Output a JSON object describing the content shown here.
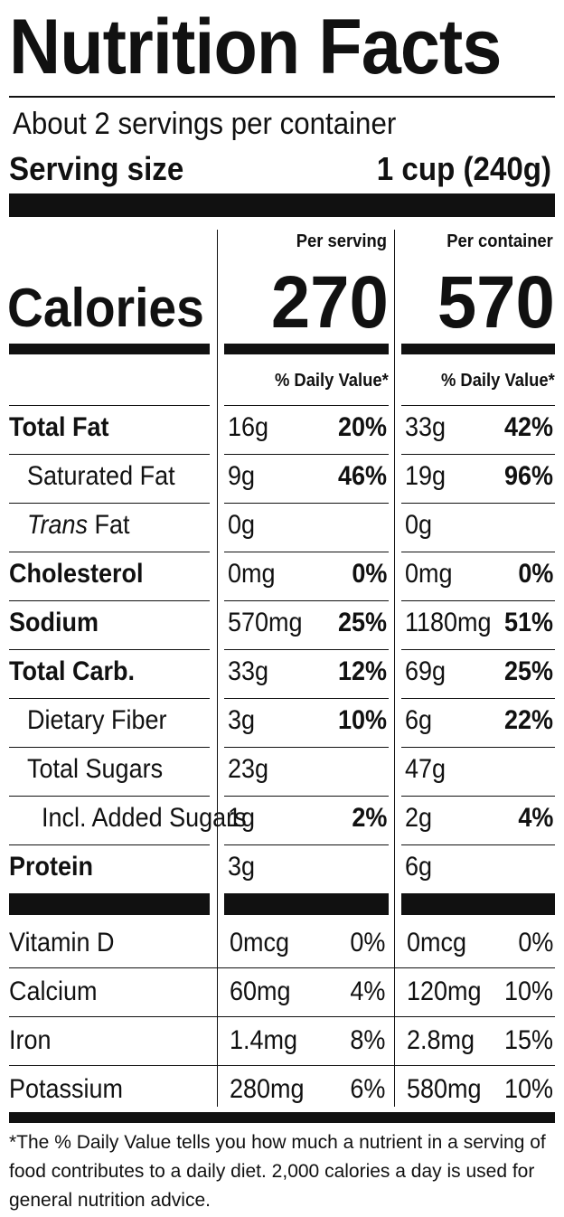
{
  "title": "Nutrition Facts",
  "servings_per_container": "About 2 servings per container",
  "serving_size": {
    "label": "Serving size",
    "value": "1 cup (240g)"
  },
  "columns": {
    "per_serving": "Per serving",
    "per_container": "Per container"
  },
  "calories": {
    "label": "Calories",
    "per_serving": "270",
    "per_container": "570"
  },
  "daily_value_header": "% Daily Value*",
  "nutrients": [
    {
      "label": "Total Fat",
      "serving_amount": "16g",
      "serving_dv": "20%",
      "container_amount": "33g",
      "container_dv": "42%"
    },
    {
      "label": "Saturated Fat",
      "serving_amount": "9g",
      "serving_dv": "46%",
      "container_amount": "19g",
      "container_dv": "96%"
    },
    {
      "label_italic": "Trans",
      "label": " Fat",
      "serving_amount": "0g",
      "serving_dv": "",
      "container_amount": "0g",
      "container_dv": ""
    },
    {
      "label": "Cholesterol",
      "serving_amount": "0mg",
      "serving_dv": "0%",
      "container_amount": "0mg",
      "container_dv": "0%"
    },
    {
      "label": "Sodium",
      "serving_amount": "570mg",
      "serving_dv": "25%",
      "container_amount": "1180mg",
      "container_dv": "51%"
    },
    {
      "label": "Total Carb.",
      "serving_amount": "33g",
      "serving_dv": "12%",
      "container_amount": "69g",
      "container_dv": "25%"
    },
    {
      "label": "Dietary Fiber",
      "serving_amount": "3g",
      "serving_dv": "10%",
      "container_amount": "6g",
      "container_dv": "22%"
    },
    {
      "label": "Total Sugars",
      "serving_amount": "23g",
      "serving_dv": "",
      "container_amount": "47g",
      "container_dv": ""
    },
    {
      "label": "Incl. Added Sugars",
      "serving_amount": "1g",
      "serving_dv": "2%",
      "container_amount": "2g",
      "container_dv": "4%"
    },
    {
      "label": "Protein",
      "serving_amount": "3g",
      "serving_dv": "",
      "container_amount": "6g",
      "container_dv": ""
    }
  ],
  "vitamins": [
    {
      "label": "Vitamin D",
      "serving_amount": "0mcg",
      "serving_dv": "0%",
      "container_amount": "0mcg",
      "container_dv": "0%"
    },
    {
      "label": "Calcium",
      "serving_amount": "60mg",
      "serving_dv": "4%",
      "container_amount": "120mg",
      "container_dv": "10%"
    },
    {
      "label": "Iron",
      "serving_amount": "1.4mg",
      "serving_dv": "8%",
      "container_amount": "2.8mg",
      "container_dv": "15%"
    },
    {
      "label": "Potassium",
      "serving_amount": "280mg",
      "serving_dv": "6%",
      "container_amount": "580mg",
      "container_dv": "10%"
    }
  ],
  "footnote": "*The % Daily Value tells you how much a nutrient in a serving of food contributes to a daily diet. 2,000 calories a day is used for general nutrition advice."
}
